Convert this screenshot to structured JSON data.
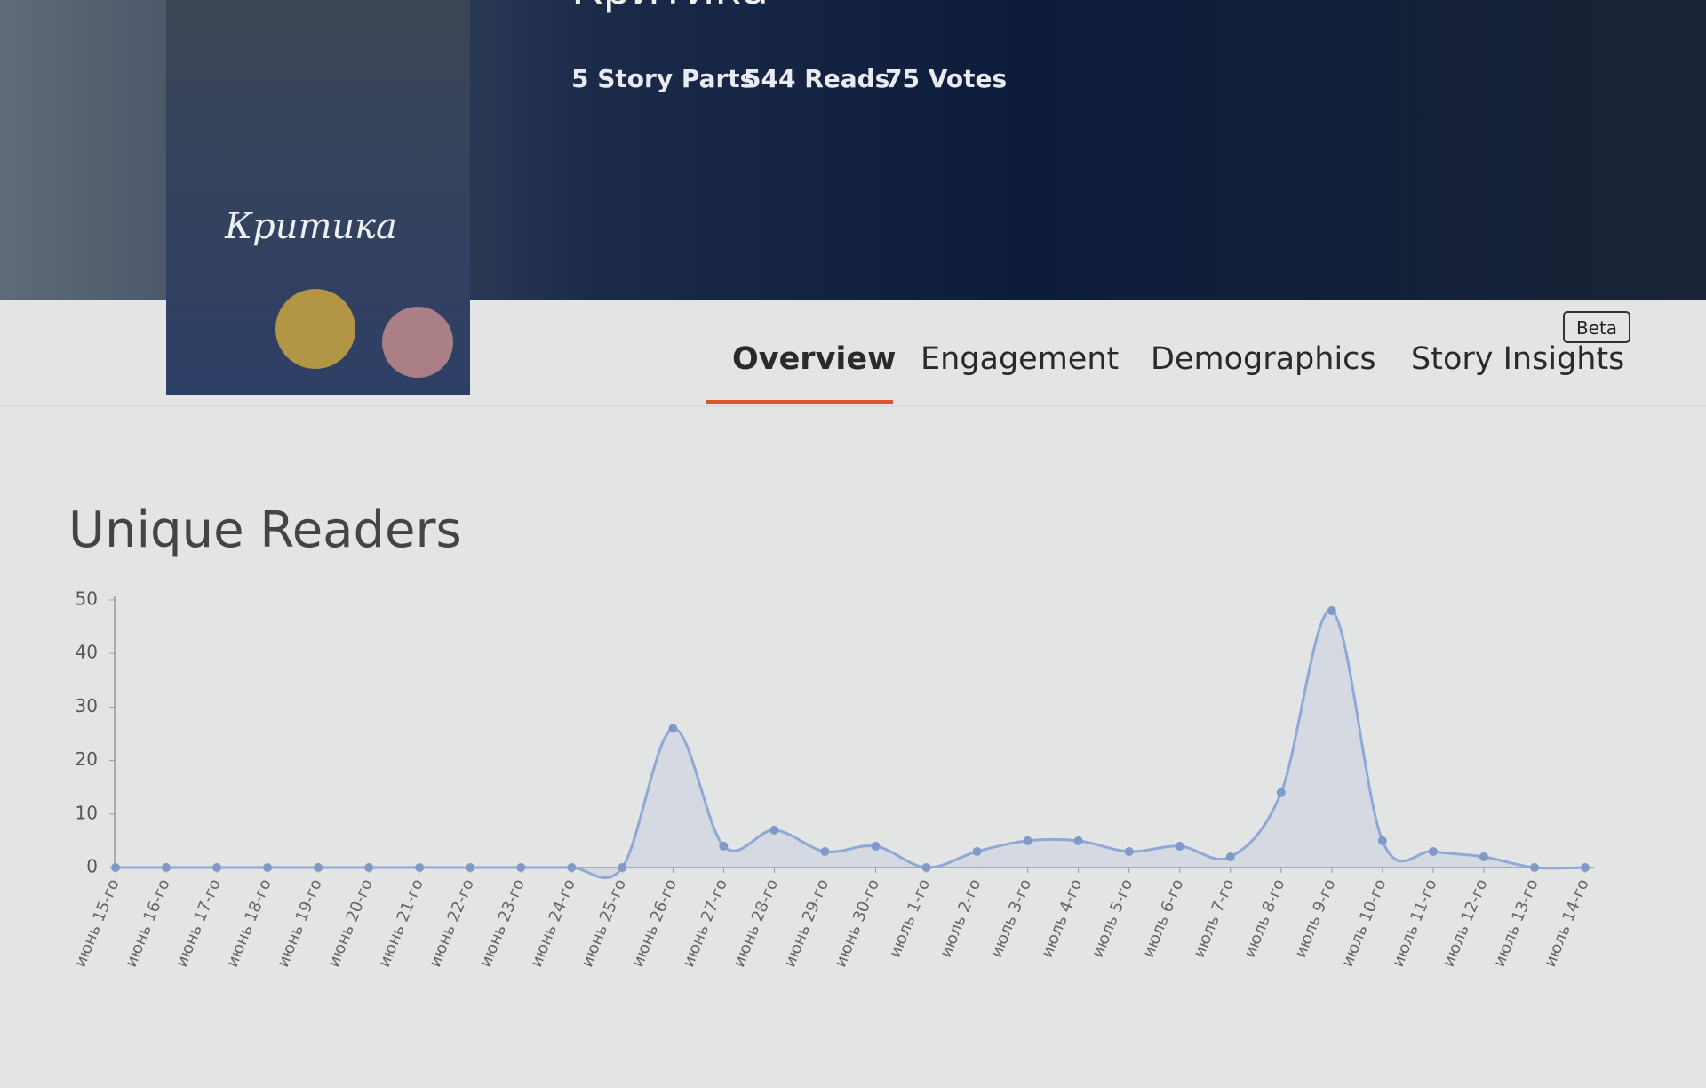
{
  "header": {
    "story_title": "Критика",
    "cover_title": "Критика",
    "stats": [
      "5 Story Parts",
      "544 Reads",
      "75 Votes"
    ]
  },
  "tabs": {
    "items": [
      "Overview",
      "Engagement",
      "Demographics",
      "Story Insights"
    ],
    "badge": "Beta"
  },
  "chart_data": {
    "type": "line",
    "title": "Unique Readers",
    "categories": [
      "июнь 15-го",
      "июнь 16-го",
      "июнь 17-го",
      "июнь 18-го",
      "июнь 19-го",
      "июнь 20-го",
      "июнь 21-го",
      "июнь 22-го",
      "июнь 23-го",
      "июнь 24-го",
      "июнь 25-го",
      "июнь 26-го",
      "июнь 27-го",
      "июнь 28-го",
      "июнь 29-го",
      "июнь 30-го",
      "июль 1-го",
      "июль 2-го",
      "июль 3-го",
      "июль 4-го",
      "июль 5-го",
      "июль 6-го",
      "июль 7-го",
      "июль 8-го",
      "июль 9-го",
      "июль 10-го",
      "июль 11-го",
      "июль 12-го",
      "июль 13-го",
      "июль 14-го"
    ],
    "values": [
      0,
      0,
      0,
      0,
      0,
      0,
      0,
      0,
      0,
      0,
      0,
      26,
      4,
      7,
      3,
      4,
      0,
      3,
      5,
      5,
      3,
      4,
      2,
      14,
      48,
      5,
      3,
      2,
      0,
      0
    ],
    "color": "#8fa9d6",
    "ylim": [
      0,
      50
    ],
    "yticks": [
      0,
      10,
      20,
      30,
      40,
      50
    ]
  }
}
